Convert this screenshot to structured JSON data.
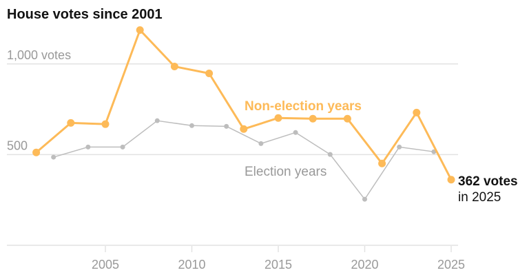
{
  "chart_data": {
    "type": "line",
    "title": "House votes since 2001",
    "ylim": [
      0,
      1000
    ],
    "yticks": [
      {
        "value": 500,
        "label": "500"
      },
      {
        "value": 1000,
        "label": "1,000 votes"
      }
    ],
    "xticks": [
      2005,
      2010,
      2015,
      2020,
      2025
    ],
    "grid": true,
    "colors": {
      "non_election": "#fdba58",
      "election": "#bdbdbd",
      "label_dark": "#121212",
      "axis_text": "#999999",
      "grid": "#e2e2e2"
    },
    "series": [
      {
        "name": "Non-election years",
        "x": [
          2001,
          2003,
          2005,
          2007,
          2009,
          2011,
          2013,
          2015,
          2017,
          2019,
          2021,
          2023,
          2025
        ],
        "values": [
          512,
          675,
          668,
          1187,
          986,
          948,
          641,
          702,
          698,
          698,
          451,
          732,
          362
        ]
      },
      {
        "name": "Election years",
        "x": [
          2002,
          2004,
          2006,
          2008,
          2010,
          2012,
          2014,
          2016,
          2018,
          2020,
          2022,
          2024
        ],
        "values": [
          486,
          542,
          542,
          687,
          660,
          656,
          561,
          622,
          501,
          254,
          542,
          516
        ]
      }
    ],
    "annotation": {
      "value": "362 votes",
      "sub": "in 2025"
    }
  }
}
